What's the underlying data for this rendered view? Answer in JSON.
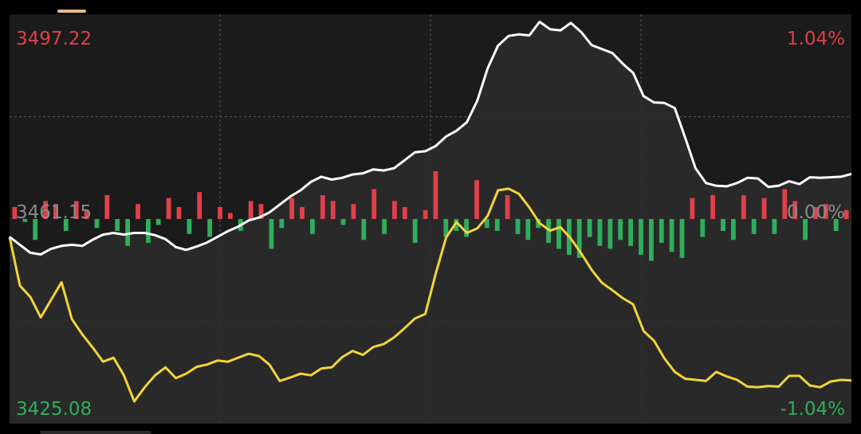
{
  "colors": {
    "background": "#000000",
    "panel": "#1b1b1b",
    "area_fill": "#2c2c2c",
    "grid": "#555555",
    "up": "#e0404a",
    "down": "#2fae5b",
    "index_line": "#ffffff",
    "avg_line": "#f2d43a",
    "neutral_text": "#8a8a8a"
  },
  "labels": {
    "max_price": "3497.22",
    "max_pct": "1.04%",
    "base_price": "3461.15",
    "base_pct": "0.00%",
    "min_price": "3425.08",
    "min_pct": "-1.04%"
  },
  "chart_data": {
    "type": "line",
    "ylim": [
      3425.08,
      3497.22
    ],
    "base": 3461.15,
    "grid": true,
    "series": [
      {
        "values": [
          3458.0,
          3456.6,
          3455.2,
          3454.9,
          3455.9,
          3456.4,
          3456.6,
          3456.4,
          3457.5,
          3458.4,
          3458.7,
          3458.4,
          3458.7,
          3458.7,
          3458.3,
          3457.6,
          3456.2,
          3455.7,
          3456.3,
          3457.0,
          3458.0,
          3459.0,
          3459.8,
          3460.9,
          3461.4,
          3462.3,
          3463.7,
          3465.1,
          3466.2,
          3467.7,
          3468.6,
          3468.1,
          3468.4,
          3469.0,
          3469.2,
          3469.9,
          3469.7,
          3470.1,
          3471.5,
          3472.9,
          3473.1,
          3474.0,
          3475.7,
          3476.7,
          3478.2,
          3482.0,
          3487.7,
          3491.7,
          3493.4,
          3493.7,
          3493.5,
          3495.9,
          3494.6,
          3494.4,
          3495.7,
          3494.1,
          3491.8,
          3491.1,
          3490.4,
          3488.5,
          3486.9,
          3482.8,
          3481.7,
          3481.6,
          3480.7,
          3475.5,
          3470.1,
          3467.5,
          3467.0,
          3466.9,
          3467.5,
          3468.4,
          3468.3,
          3466.8,
          3467.0,
          3467.8,
          3467.3,
          3468.5,
          3468.4,
          3468.5,
          3468.6,
          3469.1
        ]
      },
      {
        "values": [
          3458.0,
          3449.4,
          3447.4,
          3443.8,
          3446.9,
          3450.0,
          3443.5,
          3440.8,
          3438.5,
          3436.0,
          3436.7,
          3433.6,
          3429.0,
          3431.5,
          3433.6,
          3435.0,
          3433.1,
          3433.9,
          3435.1,
          3435.5,
          3436.2,
          3436.0,
          3436.7,
          3437.4,
          3437.0,
          3435.5,
          3432.6,
          3433.2,
          3433.9,
          3433.6,
          3434.8,
          3435.0,
          3436.8,
          3437.9,
          3437.2,
          3438.6,
          3439.1,
          3440.3,
          3441.9,
          3443.6,
          3444.4,
          3451.5,
          3457.9,
          3460.6,
          3458.7,
          3459.5,
          3461.7,
          3466.2,
          3466.5,
          3465.6,
          3463.2,
          3460.4,
          3459.1,
          3459.7,
          3457.7,
          3455.1,
          3452.2,
          3449.9,
          3448.6,
          3447.2,
          3446.1,
          3441.4,
          3439.7,
          3436.6,
          3434.2,
          3433.0,
          3432.8,
          3432.6,
          3434.2,
          3433.4,
          3432.8,
          3431.6,
          3431.5,
          3431.7,
          3431.6,
          3433.5,
          3433.5,
          3431.8,
          3431.5,
          3432.5,
          3432.8,
          3432.7
        ]
      }
    ],
    "volume": {
      "values": [
        2.0,
        -0.5,
        -3.5,
        3.0,
        2.5,
        -2.0,
        3.0,
        1.5,
        -1.5,
        4.0,
        -2.0,
        -4.5,
        2.5,
        -4.0,
        -1.0,
        3.5,
        2.0,
        -2.5,
        4.5,
        -3.0,
        2.0,
        1.0,
        -2.0,
        3.0,
        2.5,
        -5.0,
        -1.5,
        3.5,
        2.0,
        -2.5,
        4.0,
        3.0,
        -1.0,
        2.5,
        -3.5,
        5.0,
        -2.5,
        3.0,
        2.0,
        -4.0,
        1.5,
        8.0,
        -3.0,
        -2.0,
        -3.0,
        6.5,
        -1.5,
        -2.0,
        4.0,
        -2.5,
        -3.5,
        -1.5,
        -4.0,
        -5.0,
        -6.0,
        -6.5,
        -3.0,
        -4.5,
        -5.0,
        -3.5,
        -4.5,
        -6.0,
        -7.0,
        -4.0,
        -5.5,
        -6.5,
        3.5,
        -3.0,
        4.0,
        -2.0,
        -3.5,
        4.0,
        -2.5,
        3.5,
        -2.5,
        5.0,
        3.0,
        -3.5,
        2.0,
        2.5,
        -2.0,
        1.5
      ]
    }
  }
}
